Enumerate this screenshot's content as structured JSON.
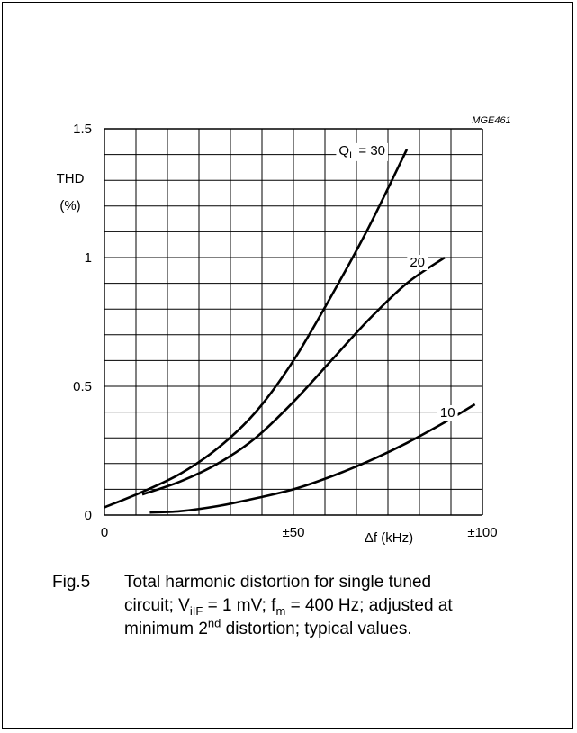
{
  "figure_code": "MGE461",
  "chart_data": {
    "type": "line",
    "xlim": [
      0,
      100
    ],
    "ylim": [
      0,
      1.5
    ],
    "grid": true,
    "x_ticks": [
      {
        "value": 0,
        "label": "0"
      },
      {
        "value": 50,
        "label": "±50"
      },
      {
        "value": 100,
        "label": "±100"
      }
    ],
    "y_ticks": [
      {
        "value": 0,
        "label": "0"
      },
      {
        "value": 0.5,
        "label": "0.5"
      },
      {
        "value": 1,
        "label": "1"
      },
      {
        "value": 1.5,
        "label": "1.5"
      }
    ],
    "ylabel_line1": "THD",
    "ylabel_line2": "(%)",
    "xlabel": "Δf (kHz)",
    "series": [
      {
        "label_main": "Q",
        "label_sub": "L",
        "label_rest": " = 30",
        "x": [
          0,
          10,
          20,
          30,
          40,
          50,
          60,
          70,
          80
        ],
        "y": [
          0.03,
          0.09,
          0.16,
          0.26,
          0.4,
          0.6,
          0.85,
          1.12,
          1.42
        ]
      },
      {
        "label_main": "20",
        "label_sub": "",
        "label_rest": "",
        "x": [
          10,
          20,
          30,
          40,
          50,
          60,
          70,
          80,
          90
        ],
        "y": [
          0.08,
          0.13,
          0.2,
          0.3,
          0.44,
          0.6,
          0.76,
          0.9,
          1.0
        ]
      },
      {
        "label_main": "10",
        "label_sub": "",
        "label_rest": "",
        "x": [
          12,
          20,
          30,
          40,
          50,
          60,
          70,
          80,
          90,
          98
        ],
        "y": [
          0.01,
          0.015,
          0.035,
          0.065,
          0.1,
          0.15,
          0.21,
          0.28,
          0.36,
          0.43
        ]
      }
    ]
  },
  "caption": {
    "fig_label": "Fig.5",
    "line1": "Total harmonic distortion for single tuned",
    "line2_a": "circuit; V",
    "line2_sub1": "iIF",
    "line2_b": " = 1 mV; f",
    "line2_sub2": "m",
    "line2_c": " = 400 Hz; adjusted at",
    "line3_a": "minimum 2",
    "line3_sup": "nd",
    "line3_b": " distortion; typical values."
  }
}
